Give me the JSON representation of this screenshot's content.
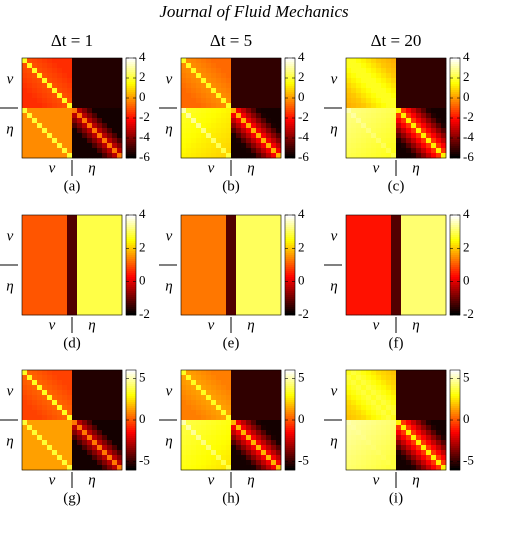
{
  "header": {
    "title": "Journal of Fluid Mechanics"
  },
  "columns": [
    "Δt = 1",
    "Δt = 5",
    "Δt = 20"
  ],
  "axis_labels": {
    "v": "v",
    "eta": "η"
  },
  "rows": [
    {
      "colorbar_range": [
        -6,
        4
      ],
      "colorbar_ticks": [
        4,
        2,
        0,
        -2,
        -4,
        -6
      ]
    },
    {
      "colorbar_range": [
        -2,
        4
      ],
      "colorbar_ticks": [
        4,
        2,
        0,
        -2
      ]
    },
    {
      "colorbar_range": [
        -6,
        6
      ],
      "colorbar_ticks": [
        5,
        0,
        -5
      ]
    }
  ],
  "panels": [
    {
      "label": "(a)"
    },
    {
      "label": "(b)"
    },
    {
      "label": "(c)"
    },
    {
      "label": "(d)"
    },
    {
      "label": "(e)"
    },
    {
      "label": "(f)"
    },
    {
      "label": "(g)"
    },
    {
      "label": "(h)"
    },
    {
      "label": "(i)"
    }
  ]
}
